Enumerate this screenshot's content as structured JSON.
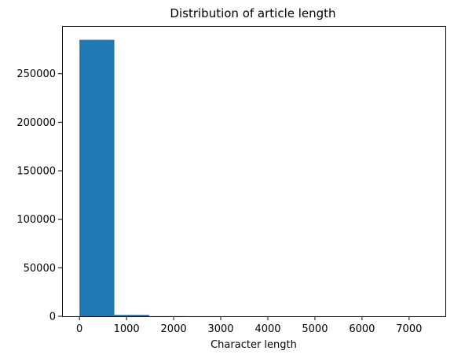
{
  "chart_data": {
    "type": "bar",
    "title": "Distribution of article length",
    "xlabel": "Character length",
    "ylabel": "",
    "bin_edges": [
      0,
      740,
      1480,
      2220,
      2960,
      3700,
      4440,
      5180,
      5920,
      6660,
      7400
    ],
    "counts": [
      285000,
      1500,
      120,
      40,
      20,
      10,
      5,
      3,
      2,
      2
    ],
    "xlim": [
      -370,
      7770
    ],
    "ylim": [
      0,
      299250
    ],
    "xticks": [
      0,
      1000,
      2000,
      3000,
      4000,
      5000,
      6000,
      7000
    ],
    "xtick_labels": [
      "0",
      "1000",
      "2000",
      "3000",
      "4000",
      "5000",
      "6000",
      "7000"
    ],
    "yticks": [
      0,
      50000,
      100000,
      150000,
      200000,
      250000
    ],
    "ytick_labels": [
      "0",
      "50000",
      "100000",
      "150000",
      "200000",
      "250000"
    ],
    "bar_color": "#1f77b4",
    "grid": false,
    "legend": "none"
  }
}
